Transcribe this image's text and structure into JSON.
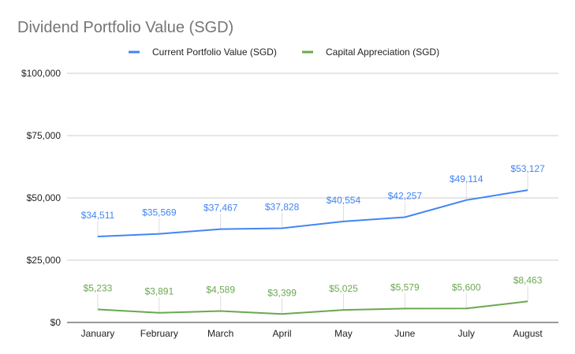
{
  "chart_data": {
    "type": "line",
    "title": "Dividend Portfolio Value (SGD)",
    "xlabel": "",
    "ylabel": "",
    "categories": [
      "January",
      "February",
      "March",
      "April",
      "May",
      "June",
      "July",
      "August"
    ],
    "ylim": [
      0,
      100000
    ],
    "yticks": [
      0,
      25000,
      50000,
      75000,
      100000
    ],
    "ytick_labels": [
      "$0",
      "$25,000",
      "$50,000",
      "$75,000",
      "$100,000"
    ],
    "grid": true,
    "legend_position": "top",
    "series": [
      {
        "name": "Current Portfolio Value (SGD)",
        "color": "#4285f4",
        "values": [
          34511,
          35569,
          37467,
          37828,
          40554,
          42257,
          49114,
          53127
        ],
        "labels": [
          "$34,511",
          "$35,569",
          "$37,467",
          "$37,828",
          "$40,554",
          "$42,257",
          "$49,114",
          "$53,127"
        ]
      },
      {
        "name": "Capital Appreciation (SGD)",
        "color": "#6aa84f",
        "values": [
          5233,
          3891,
          4589,
          3399,
          5025,
          5579,
          5600,
          8463
        ],
        "labels": [
          "$5,233",
          "$3,891",
          "$4,589",
          "$3,399",
          "$5,025",
          "$5,579",
          "$5,600",
          "$8,463"
        ]
      }
    ]
  }
}
